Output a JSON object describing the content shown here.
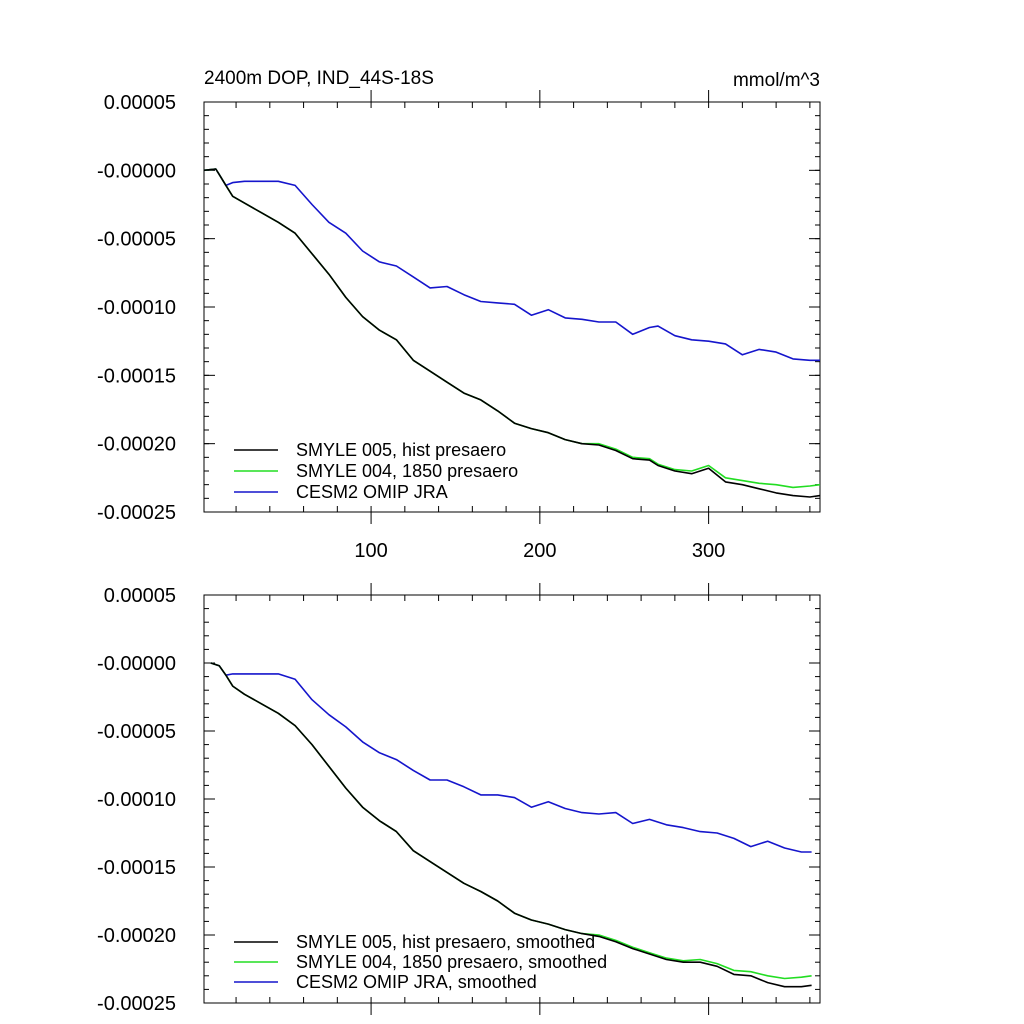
{
  "figure": {
    "title_left": "2400m DOP, IND_44S-18S",
    "title_right": "mmol/m^3"
  },
  "chart_data": [
    {
      "type": "line",
      "title": "2400m DOP, IND_44S-18S",
      "units": "mmol/m^3",
      "xlim": [
        1,
        366
      ],
      "ylim": [
        -0.00025,
        5e-05
      ],
      "x_ticks": [
        100,
        200,
        300
      ],
      "x_tick_labels": [
        "100",
        "200",
        "300"
      ],
      "y_ticks": [
        5e-05,
        0,
        -5e-05,
        -0.0001,
        -0.00015,
        -0.0002,
        -0.00025
      ],
      "y_tick_labels": [
        "0.00005",
        "-0.00000",
        "-0.00005",
        "-0.00010",
        "-0.00015",
        "-0.00020",
        "-0.00025"
      ],
      "legend_position": "bottom-left",
      "series": [
        {
          "name": "SMYLE 005, hist presaero",
          "color": "#000000",
          "x": [
            1,
            8,
            10,
            14,
            18,
            25,
            35,
            45,
            55,
            65,
            75,
            85,
            95,
            105,
            115,
            125,
            135,
            145,
            155,
            165,
            175,
            185,
            195,
            205,
            215,
            225,
            235,
            245,
            255,
            265,
            270,
            280,
            290,
            300,
            310,
            320,
            330,
            340,
            350,
            360,
            366
          ],
          "y": [
            0,
            1e-06,
            -3e-06,
            -1.1e-05,
            -1.9e-05,
            -2.4e-05,
            -3.1e-05,
            -3.8e-05,
            -4.6e-05,
            -6.1e-05,
            -7.6e-05,
            -9.3e-05,
            -0.000107,
            -0.000117,
            -0.000124,
            -0.000139,
            -0.000147,
            -0.000155,
            -0.000163,
            -0.000168,
            -0.000176,
            -0.000185,
            -0.000189,
            -0.000192,
            -0.000197,
            -0.0002,
            -0.000201,
            -0.000205,
            -0.000211,
            -0.000212,
            -0.000216,
            -0.00022,
            -0.000222,
            -0.000218,
            -0.000228,
            -0.00023,
            -0.000233,
            -0.000236,
            -0.000238,
            -0.000239,
            -0.000238
          ]
        },
        {
          "name": "SMYLE 004, 1850 presaero",
          "color": "#22dd22",
          "x": [
            1,
            8,
            10,
            14,
            18,
            25,
            35,
            45,
            55,
            65,
            75,
            85,
            95,
            105,
            115,
            125,
            135,
            145,
            155,
            165,
            175,
            185,
            195,
            205,
            215,
            225,
            235,
            245,
            255,
            265,
            270,
            280,
            290,
            300,
            310,
            320,
            330,
            340,
            350,
            360,
            366
          ],
          "y": [
            0,
            1e-06,
            -3e-06,
            -1.1e-05,
            -1.9e-05,
            -2.4e-05,
            -3.1e-05,
            -3.8e-05,
            -4.6e-05,
            -6.1e-05,
            -7.6e-05,
            -9.3e-05,
            -0.000107,
            -0.000117,
            -0.000124,
            -0.000139,
            -0.000147,
            -0.000155,
            -0.000163,
            -0.000168,
            -0.000176,
            -0.000185,
            -0.000189,
            -0.000192,
            -0.000197,
            -0.0002,
            -0.0002,
            -0.000204,
            -0.00021,
            -0.000211,
            -0.000215,
            -0.000219,
            -0.00022,
            -0.000216,
            -0.000225,
            -0.000227,
            -0.000229,
            -0.00023,
            -0.000232,
            -0.000231,
            -0.00023
          ]
        },
        {
          "name": "CESM2 OMIP JRA",
          "color": "#1515cc",
          "x": [
            1,
            8,
            10,
            14,
            18,
            25,
            35,
            45,
            55,
            65,
            75,
            85,
            95,
            105,
            115,
            125,
            135,
            145,
            155,
            165,
            175,
            185,
            195,
            205,
            215,
            225,
            235,
            245,
            255,
            265,
            270,
            280,
            290,
            300,
            310,
            320,
            330,
            340,
            350,
            360,
            366
          ],
          "y": [
            0,
            1e-06,
            -3e-06,
            -1.1e-05,
            -9e-06,
            -8e-06,
            -8e-06,
            -8e-06,
            -1.1e-05,
            -2.5e-05,
            -3.8e-05,
            -4.6e-05,
            -5.9e-05,
            -6.7e-05,
            -7e-05,
            -7.8e-05,
            -8.6e-05,
            -8.5e-05,
            -9.1e-05,
            -9.6e-05,
            -9.7e-05,
            -9.8e-05,
            -0.000106,
            -0.000102,
            -0.000108,
            -0.000109,
            -0.000111,
            -0.000111,
            -0.00012,
            -0.000115,
            -0.000114,
            -0.000121,
            -0.000124,
            -0.000125,
            -0.000127,
            -0.000135,
            -0.000131,
            -0.000133,
            -0.000138,
            -0.000139,
            -0.000139
          ]
        }
      ]
    },
    {
      "type": "line",
      "title": "",
      "xlim": [
        1,
        366
      ],
      "ylim": [
        -0.00025,
        5e-05
      ],
      "x_ticks": [
        100,
        200,
        300
      ],
      "x_tick_labels": [],
      "y_ticks": [
        5e-05,
        0,
        -5e-05,
        -0.0001,
        -0.00015,
        -0.0002,
        -0.00025
      ],
      "y_tick_labels": [
        "0.00005",
        "-0.00000",
        "-0.00005",
        "-0.00010",
        "-0.00015",
        "-0.00020",
        "-0.00025"
      ],
      "legend_position": "bottom-left",
      "series": [
        {
          "name": "SMYLE 005, hist presaero, smoothed",
          "color": "#000000",
          "x": [
            5,
            10,
            14,
            18,
            25,
            35,
            45,
            55,
            65,
            75,
            85,
            95,
            105,
            115,
            125,
            135,
            145,
            155,
            165,
            175,
            185,
            195,
            205,
            215,
            225,
            235,
            245,
            255,
            265,
            275,
            285,
            295,
            305,
            315,
            325,
            335,
            345,
            355,
            361
          ],
          "y": [
            0,
            -2e-06,
            -9e-06,
            -1.7e-05,
            -2.3e-05,
            -3e-05,
            -3.7e-05,
            -4.6e-05,
            -6e-05,
            -7.6e-05,
            -9.2e-05,
            -0.000106,
            -0.000116,
            -0.000124,
            -0.000138,
            -0.000146,
            -0.000154,
            -0.000162,
            -0.000168,
            -0.000175,
            -0.000184,
            -0.000189,
            -0.000192,
            -0.000196,
            -0.000199,
            -0.000201,
            -0.000205,
            -0.00021,
            -0.000214,
            -0.000218,
            -0.00022,
            -0.00022,
            -0.000223,
            -0.000229,
            -0.00023,
            -0.000235,
            -0.000238,
            -0.000238,
            -0.000237
          ]
        },
        {
          "name": "SMYLE 004, 1850 presaero, smoothed",
          "color": "#22dd22",
          "x": [
            5,
            10,
            14,
            18,
            25,
            35,
            45,
            55,
            65,
            75,
            85,
            95,
            105,
            115,
            125,
            135,
            145,
            155,
            165,
            175,
            185,
            195,
            205,
            215,
            225,
            235,
            245,
            255,
            265,
            275,
            285,
            295,
            305,
            315,
            325,
            335,
            345,
            355,
            361
          ],
          "y": [
            0,
            -2e-06,
            -9e-06,
            -1.7e-05,
            -2.3e-05,
            -3e-05,
            -3.7e-05,
            -4.6e-05,
            -6e-05,
            -7.6e-05,
            -9.2e-05,
            -0.000106,
            -0.000116,
            -0.000124,
            -0.000138,
            -0.000146,
            -0.000154,
            -0.000162,
            -0.000168,
            -0.000175,
            -0.000184,
            -0.000189,
            -0.000192,
            -0.000196,
            -0.000199,
            -0.0002,
            -0.000204,
            -0.000209,
            -0.000213,
            -0.000217,
            -0.000219,
            -0.000218,
            -0.000221,
            -0.000226,
            -0.000227,
            -0.00023,
            -0.000232,
            -0.000231,
            -0.00023
          ]
        },
        {
          "name": "CESM2 OMIP JRA, smoothed",
          "color": "#1515cc",
          "x": [
            5,
            10,
            14,
            18,
            25,
            35,
            45,
            55,
            65,
            75,
            85,
            95,
            105,
            115,
            125,
            135,
            145,
            155,
            165,
            175,
            185,
            195,
            205,
            215,
            225,
            235,
            245,
            255,
            265,
            275,
            285,
            295,
            305,
            315,
            325,
            335,
            345,
            355,
            361
          ],
          "y": [
            0,
            -2e-06,
            -9e-06,
            -8e-06,
            -8e-06,
            -8e-06,
            -8e-06,
            -1.2e-05,
            -2.7e-05,
            -3.8e-05,
            -4.7e-05,
            -5.8e-05,
            -6.6e-05,
            -7.1e-05,
            -7.9e-05,
            -8.6e-05,
            -8.6e-05,
            -9.1e-05,
            -9.7e-05,
            -9.7e-05,
            -9.9e-05,
            -0.000106,
            -0.000102,
            -0.000107,
            -0.00011,
            -0.000111,
            -0.00011,
            -0.000118,
            -0.000115,
            -0.000119,
            -0.000121,
            -0.000124,
            -0.000125,
            -0.000129,
            -0.000135,
            -0.000131,
            -0.000136,
            -0.000139,
            -0.000139
          ]
        }
      ]
    }
  ]
}
